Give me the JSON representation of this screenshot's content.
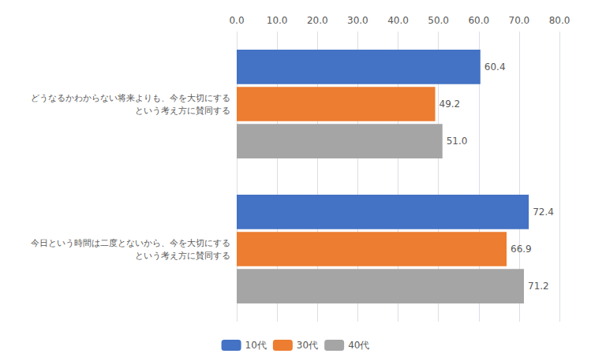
{
  "chart_data": {
    "type": "bar",
    "orientation": "horizontal",
    "categories": [
      "どうなるかわからない将来よりも、今を大切にする\n　　　という考え方に賛同する",
      "今日という時間は二度とないから、今を大切にする\n　　という考え方に賛同する"
    ],
    "series": [
      {
        "name": "10代",
        "color": "#4472C4",
        "values": [
          60.4,
          72.4
        ],
        "value_labels": [
          "60.4",
          "72.4"
        ]
      },
      {
        "name": "30代",
        "color": "#ED7D31",
        "values": [
          49.2,
          66.9
        ],
        "value_labels": [
          "49.2",
          "66.9"
        ]
      },
      {
        "name": "40代",
        "color": "#A5A5A5",
        "values": [
          51.0,
          71.2
        ],
        "value_labels": [
          "51.0",
          "71.2"
        ]
      }
    ],
    "xlim": [
      0,
      80
    ],
    "xticks": [
      {
        "value": 0,
        "label": "0.0"
      },
      {
        "value": 10,
        "label": "10.0"
      },
      {
        "value": 20,
        "label": "20.0"
      },
      {
        "value": 30,
        "label": "30.0"
      },
      {
        "value": 40,
        "label": "40.0"
      },
      {
        "value": 50,
        "label": "50.0"
      },
      {
        "value": 60,
        "label": "60.0"
      },
      {
        "value": 70,
        "label": "70.0"
      },
      {
        "value": 80,
        "label": "80.0"
      }
    ],
    "grid": true,
    "legend": "bottom",
    "data_labels": true
  }
}
